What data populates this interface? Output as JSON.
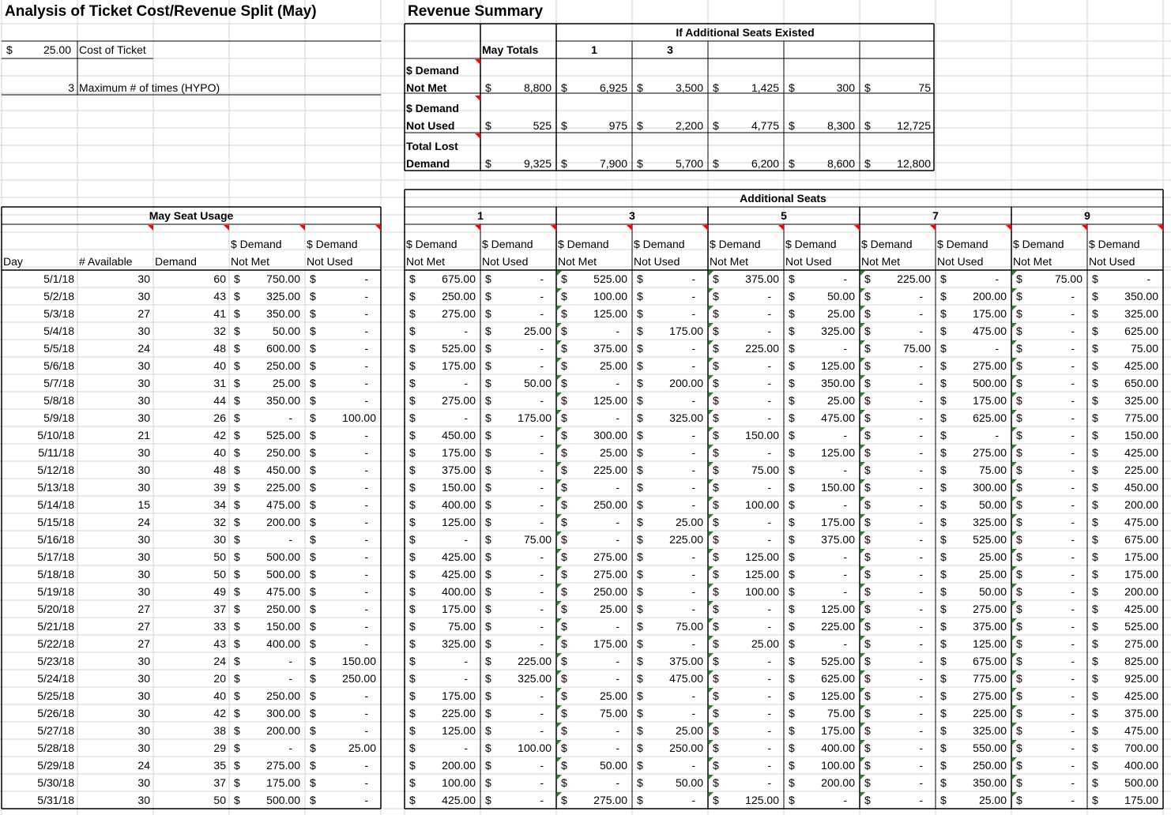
{
  "title": "Analysis of Ticket Cost/Revenue Split (May)",
  "revenue_title": "Revenue Summary",
  "inputs": {
    "ticket_cost_symbol": "$",
    "ticket_cost": "25.00",
    "ticket_cost_label": "Cost of Ticket",
    "max_times": "3",
    "max_times_label": "Maximum # of times (HYPO)"
  },
  "summary": {
    "group_header": "If Additional Seats Existed",
    "may_totals_label": "May Totals",
    "col_headers": [
      "1",
      "3",
      "",
      "",
      ""
    ],
    "rows": [
      {
        "label1": "$ Demand",
        "label2": "Not Met",
        "values": [
          "8,800",
          "6,925",
          "3,500",
          "1,425",
          "300",
          "75"
        ]
      },
      {
        "label1": "$ Demand",
        "label2": "Not Used",
        "values": [
          "525",
          "975",
          "2,200",
          "4,775",
          "8,300",
          "12,725"
        ]
      },
      {
        "label1": "Total Lost",
        "label2": "Demand",
        "values": [
          "9,325",
          "7,900",
          "5,700",
          "6,200",
          "8,600",
          "12,800"
        ]
      }
    ]
  },
  "left_table": {
    "header": "May Seat Usage",
    "col1": [
      "Day"
    ],
    "col2": [
      "# Available"
    ],
    "col3": [
      "Demand"
    ],
    "col4": [
      "$ Demand",
      "Not Met"
    ],
    "col5": [
      "$ Demand",
      "Not Used"
    ]
  },
  "additional_header": "Additional Seats",
  "additional_groups": [
    "1",
    "3",
    "5",
    "7",
    "9"
  ],
  "sub_headers": [
    "$ Demand",
    "Not Met",
    "$ Demand",
    "Not Used"
  ],
  "rows": [
    [
      "5/1/18",
      "30",
      "60",
      "750.00",
      "-",
      "675.00",
      "-",
      "525.00",
      "-",
      "375.00",
      "-",
      "225.00",
      "-",
      "75.00",
      "-"
    ],
    [
      "5/2/18",
      "30",
      "43",
      "325.00",
      "-",
      "250.00",
      "-",
      "100.00",
      "-",
      "-",
      "50.00",
      "-",
      "200.00",
      "-",
      "350.00"
    ],
    [
      "5/3/18",
      "27",
      "41",
      "350.00",
      "-",
      "275.00",
      "-",
      "125.00",
      "-",
      "-",
      "25.00",
      "-",
      "175.00",
      "-",
      "325.00"
    ],
    [
      "5/4/18",
      "30",
      "32",
      "50.00",
      "-",
      "-",
      "25.00",
      "-",
      "175.00",
      "-",
      "325.00",
      "-",
      "475.00",
      "-",
      "625.00"
    ],
    [
      "5/5/18",
      "24",
      "48",
      "600.00",
      "-",
      "525.00",
      "-",
      "375.00",
      "-",
      "225.00",
      "-",
      "75.00",
      "-",
      "-",
      "75.00"
    ],
    [
      "5/6/18",
      "30",
      "40",
      "250.00",
      "-",
      "175.00",
      "-",
      "25.00",
      "-",
      "-",
      "125.00",
      "-",
      "275.00",
      "-",
      "425.00"
    ],
    [
      "5/7/18",
      "30",
      "31",
      "25.00",
      "-",
      "-",
      "50.00",
      "-",
      "200.00",
      "-",
      "350.00",
      "-",
      "500.00",
      "-",
      "650.00"
    ],
    [
      "5/8/18",
      "30",
      "44",
      "350.00",
      "-",
      "275.00",
      "-",
      "125.00",
      "-",
      "-",
      "25.00",
      "-",
      "175.00",
      "-",
      "325.00"
    ],
    [
      "5/9/18",
      "30",
      "26",
      "-",
      "100.00",
      "-",
      "175.00",
      "-",
      "325.00",
      "-",
      "475.00",
      "-",
      "625.00",
      "-",
      "775.00"
    ],
    [
      "5/10/18",
      "21",
      "42",
      "525.00",
      "-",
      "450.00",
      "-",
      "300.00",
      "-",
      "150.00",
      "-",
      "-",
      "-",
      "-",
      "150.00"
    ],
    [
      "5/11/18",
      "30",
      "40",
      "250.00",
      "-",
      "175.00",
      "-",
      "25.00",
      "-",
      "-",
      "125.00",
      "-",
      "275.00",
      "-",
      "425.00"
    ],
    [
      "5/12/18",
      "30",
      "48",
      "450.00",
      "-",
      "375.00",
      "-",
      "225.00",
      "-",
      "75.00",
      "-",
      "-",
      "75.00",
      "-",
      "225.00"
    ],
    [
      "5/13/18",
      "30",
      "39",
      "225.00",
      "-",
      "150.00",
      "-",
      "-",
      "-",
      "-",
      "150.00",
      "-",
      "300.00",
      "-",
      "450.00"
    ],
    [
      "5/14/18",
      "15",
      "34",
      "475.00",
      "-",
      "400.00",
      "-",
      "250.00",
      "-",
      "100.00",
      "-",
      "-",
      "50.00",
      "-",
      "200.00"
    ],
    [
      "5/15/18",
      "24",
      "32",
      "200.00",
      "-",
      "125.00",
      "-",
      "-",
      "25.00",
      "-",
      "175.00",
      "-",
      "325.00",
      "-",
      "475.00"
    ],
    [
      "5/16/18",
      "30",
      "30",
      "-",
      "-",
      "-",
      "75.00",
      "-",
      "225.00",
      "-",
      "375.00",
      "-",
      "525.00",
      "-",
      "675.00"
    ],
    [
      "5/17/18",
      "30",
      "50",
      "500.00",
      "-",
      "425.00",
      "-",
      "275.00",
      "-",
      "125.00",
      "-",
      "-",
      "25.00",
      "-",
      "175.00"
    ],
    [
      "5/18/18",
      "30",
      "50",
      "500.00",
      "-",
      "425.00",
      "-",
      "275.00",
      "-",
      "125.00",
      "-",
      "-",
      "25.00",
      "-",
      "175.00"
    ],
    [
      "5/19/18",
      "30",
      "49",
      "475.00",
      "-",
      "400.00",
      "-",
      "250.00",
      "-",
      "100.00",
      "-",
      "-",
      "50.00",
      "-",
      "200.00"
    ],
    [
      "5/20/18",
      "27",
      "37",
      "250.00",
      "-",
      "175.00",
      "-",
      "25.00",
      "-",
      "-",
      "125.00",
      "-",
      "275.00",
      "-",
      "425.00"
    ],
    [
      "5/21/18",
      "27",
      "33",
      "150.00",
      "-",
      "75.00",
      "-",
      "-",
      "75.00",
      "-",
      "225.00",
      "-",
      "375.00",
      "-",
      "525.00"
    ],
    [
      "5/22/18",
      "27",
      "43",
      "400.00",
      "-",
      "325.00",
      "-",
      "175.00",
      "-",
      "25.00",
      "-",
      "-",
      "125.00",
      "-",
      "275.00"
    ],
    [
      "5/23/18",
      "30",
      "24",
      "-",
      "150.00",
      "-",
      "225.00",
      "-",
      "375.00",
      "-",
      "525.00",
      "-",
      "675.00",
      "-",
      "825.00"
    ],
    [
      "5/24/18",
      "30",
      "20",
      "-",
      "250.00",
      "-",
      "325.00",
      "-",
      "475.00",
      "-",
      "625.00",
      "-",
      "775.00",
      "-",
      "925.00"
    ],
    [
      "5/25/18",
      "30",
      "40",
      "250.00",
      "-",
      "175.00",
      "-",
      "25.00",
      "-",
      "-",
      "125.00",
      "-",
      "275.00",
      "-",
      "425.00"
    ],
    [
      "5/26/18",
      "30",
      "42",
      "300.00",
      "-",
      "225.00",
      "-",
      "75.00",
      "-",
      "-",
      "75.00",
      "-",
      "225.00",
      "-",
      "375.00"
    ],
    [
      "5/27/18",
      "30",
      "38",
      "200.00",
      "-",
      "125.00",
      "-",
      "-",
      "25.00",
      "-",
      "175.00",
      "-",
      "325.00",
      "-",
      "475.00"
    ],
    [
      "5/28/18",
      "30",
      "29",
      "-",
      "25.00",
      "-",
      "100.00",
      "-",
      "250.00",
      "-",
      "400.00",
      "-",
      "550.00",
      "-",
      "700.00"
    ],
    [
      "5/29/18",
      "24",
      "35",
      "275.00",
      "-",
      "200.00",
      "-",
      "50.00",
      "-",
      "-",
      "100.00",
      "-",
      "250.00",
      "-",
      "400.00"
    ],
    [
      "5/30/18",
      "30",
      "37",
      "175.00",
      "-",
      "100.00",
      "-",
      "-",
      "50.00",
      "-",
      "200.00",
      "-",
      "350.00",
      "-",
      "500.00"
    ],
    [
      "5/31/18",
      "30",
      "50",
      "500.00",
      "-",
      "425.00",
      "-",
      "275.00",
      "-",
      "125.00",
      "-",
      "-",
      "25.00",
      "-",
      "175.00"
    ]
  ],
  "currency_symbol": "$",
  "colors": {
    "gridline": "#d4d4d4",
    "border": "#000000",
    "comment_flag": "#ff0000",
    "error_flag": "#1e8c1e"
  }
}
